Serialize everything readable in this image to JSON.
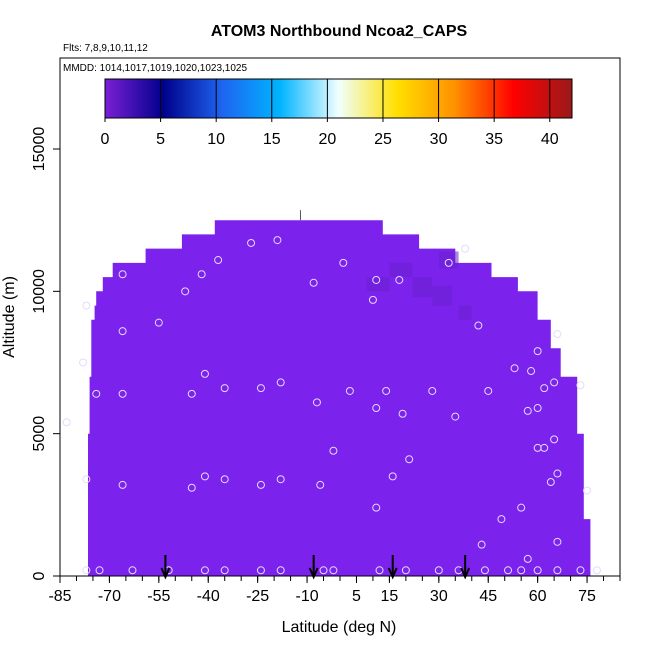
{
  "chart_data": {
    "type": "heatmap",
    "title": "ATOM3 Northbound Ncoa2_CAPS",
    "subtitle_flights": "Flts: 7,8,9,10,11,12",
    "subtitle_dates": "MMDD: 1014,1017,1019,1020,1023,1025",
    "xlabel": "Latitude (deg N)",
    "ylabel": "Altitude (m)",
    "xlim": [
      -85,
      85
    ],
    "ylim": [
      0,
      17000
    ],
    "xticks": [
      -85,
      -70,
      -55,
      -40,
      -25,
      -10,
      5,
      15,
      30,
      45,
      60,
      75
    ],
    "yticks": [
      0,
      5000,
      10000,
      15000
    ],
    "grid": false,
    "colorbar": {
      "ticks": [
        0,
        5,
        10,
        15,
        20,
        25,
        30,
        35,
        40
      ],
      "range": [
        0,
        42
      ],
      "colors": [
        "#7a1fd6",
        "#00008a",
        "#1e64f0",
        "#00b4ff",
        "#f0ffff",
        "#ffe000",
        "#ff9000",
        "#ff0000",
        "#9a1a1a"
      ],
      "placement": "top"
    },
    "field_color": "#7b22ec",
    "field_extent": {
      "x_left_profile": [
        [
          -76.5,
          0
        ],
        [
          -76,
          5000
        ],
        [
          -75.5,
          7000
        ],
        [
          -74.5,
          9000
        ],
        [
          -74,
          9500
        ],
        [
          -72,
          10000
        ],
        [
          -69,
          10500
        ],
        [
          -59,
          11000
        ],
        [
          -48,
          11500
        ],
        [
          -38,
          12000
        ],
        [
          -25,
          12500
        ]
      ],
      "x_right_profile": [
        [
          13,
          12500
        ],
        [
          24,
          12000
        ],
        [
          35,
          11500
        ],
        [
          46,
          11000
        ],
        [
          54,
          10500
        ],
        [
          60,
          10000
        ],
        [
          64,
          9000
        ],
        [
          67,
          8000
        ],
        [
          72,
          7000
        ],
        [
          74,
          5000
        ],
        [
          76,
          2000
        ],
        [
          78,
          0
        ]
      ],
      "darker_patches": [
        {
          "x": [
            8,
            15
          ],
          "y": [
            10000,
            10500
          ]
        },
        {
          "x": [
            15,
            22
          ],
          "y": [
            10500,
            11000
          ]
        },
        {
          "x": [
            22,
            28
          ],
          "y": [
            9800,
            10500
          ]
        },
        {
          "x": [
            28,
            34
          ],
          "y": [
            9500,
            10200
          ]
        },
        {
          "x": [
            30,
            36
          ],
          "y": [
            10800,
            11400
          ]
        },
        {
          "x": [
            36,
            40
          ],
          "y": [
            9000,
            9500
          ]
        }
      ]
    },
    "observations": [
      [
        -83,
        5400
      ],
      [
        -78,
        7500
      ],
      [
        -77,
        3400
      ],
      [
        -77,
        200
      ],
      [
        -77,
        9500
      ],
      [
        -74,
        6400
      ],
      [
        -73,
        200
      ],
      [
        -66,
        10600
      ],
      [
        -66,
        8600
      ],
      [
        -66,
        6400
      ],
      [
        -66,
        3200
      ],
      [
        -63,
        200
      ],
      [
        -55,
        8900
      ],
      [
        -52,
        200
      ],
      [
        -47,
        10000
      ],
      [
        -45,
        6400
      ],
      [
        -45,
        3100
      ],
      [
        -42,
        10600
      ],
      [
        -41,
        7100
      ],
      [
        -41,
        3500
      ],
      [
        -41,
        200
      ],
      [
        -37,
        11100
      ],
      [
        -35,
        6600
      ],
      [
        -35,
        3400
      ],
      [
        -35,
        200
      ],
      [
        -27,
        11700
      ],
      [
        -24,
        6600
      ],
      [
        -24,
        3200
      ],
      [
        -24,
        200
      ],
      [
        -19,
        11800
      ],
      [
        -18,
        6800
      ],
      [
        -18,
        3400
      ],
      [
        -18,
        200
      ],
      [
        -8,
        10300
      ],
      [
        -7,
        6100
      ],
      [
        -6,
        3200
      ],
      [
        -5,
        200
      ],
      [
        -2,
        4400
      ],
      [
        -2,
        200
      ],
      [
        1,
        11000
      ],
      [
        3,
        6500
      ],
      [
        10,
        9700
      ],
      [
        11,
        10400
      ],
      [
        11,
        5900
      ],
      [
        11,
        2400
      ],
      [
        12,
        200
      ],
      [
        14,
        6500
      ],
      [
        16,
        3500
      ],
      [
        18,
        10400
      ],
      [
        19,
        5700
      ],
      [
        20,
        200
      ],
      [
        21,
        4100
      ],
      [
        28,
        6500
      ],
      [
        30,
        200
      ],
      [
        33,
        11000
      ],
      [
        35,
        5600
      ],
      [
        36,
        200
      ],
      [
        38,
        11500
      ],
      [
        42,
        8800
      ],
      [
        43,
        1100
      ],
      [
        44,
        200
      ],
      [
        45,
        6500
      ],
      [
        49,
        2000
      ],
      [
        51,
        200
      ],
      [
        53,
        7300
      ],
      [
        55,
        2400
      ],
      [
        55,
        200
      ],
      [
        57,
        5800
      ],
      [
        57,
        600
      ],
      [
        58,
        7200
      ],
      [
        60,
        7900
      ],
      [
        60,
        5900
      ],
      [
        60,
        4500
      ],
      [
        60,
        200
      ],
      [
        62,
        6600
      ],
      [
        62,
        4500
      ],
      [
        64,
        3300
      ],
      [
        65,
        6800
      ],
      [
        65,
        4800
      ],
      [
        66,
        8500
      ],
      [
        66,
        3600
      ],
      [
        66,
        1200
      ],
      [
        66,
        200
      ],
      [
        73,
        6700
      ],
      [
        73,
        200
      ],
      [
        75,
        3000
      ],
      [
        78,
        200
      ]
    ],
    "top_marker": [
      -12,
      12500
    ],
    "arrows_x": [
      -53,
      -8,
      16,
      38
    ]
  }
}
